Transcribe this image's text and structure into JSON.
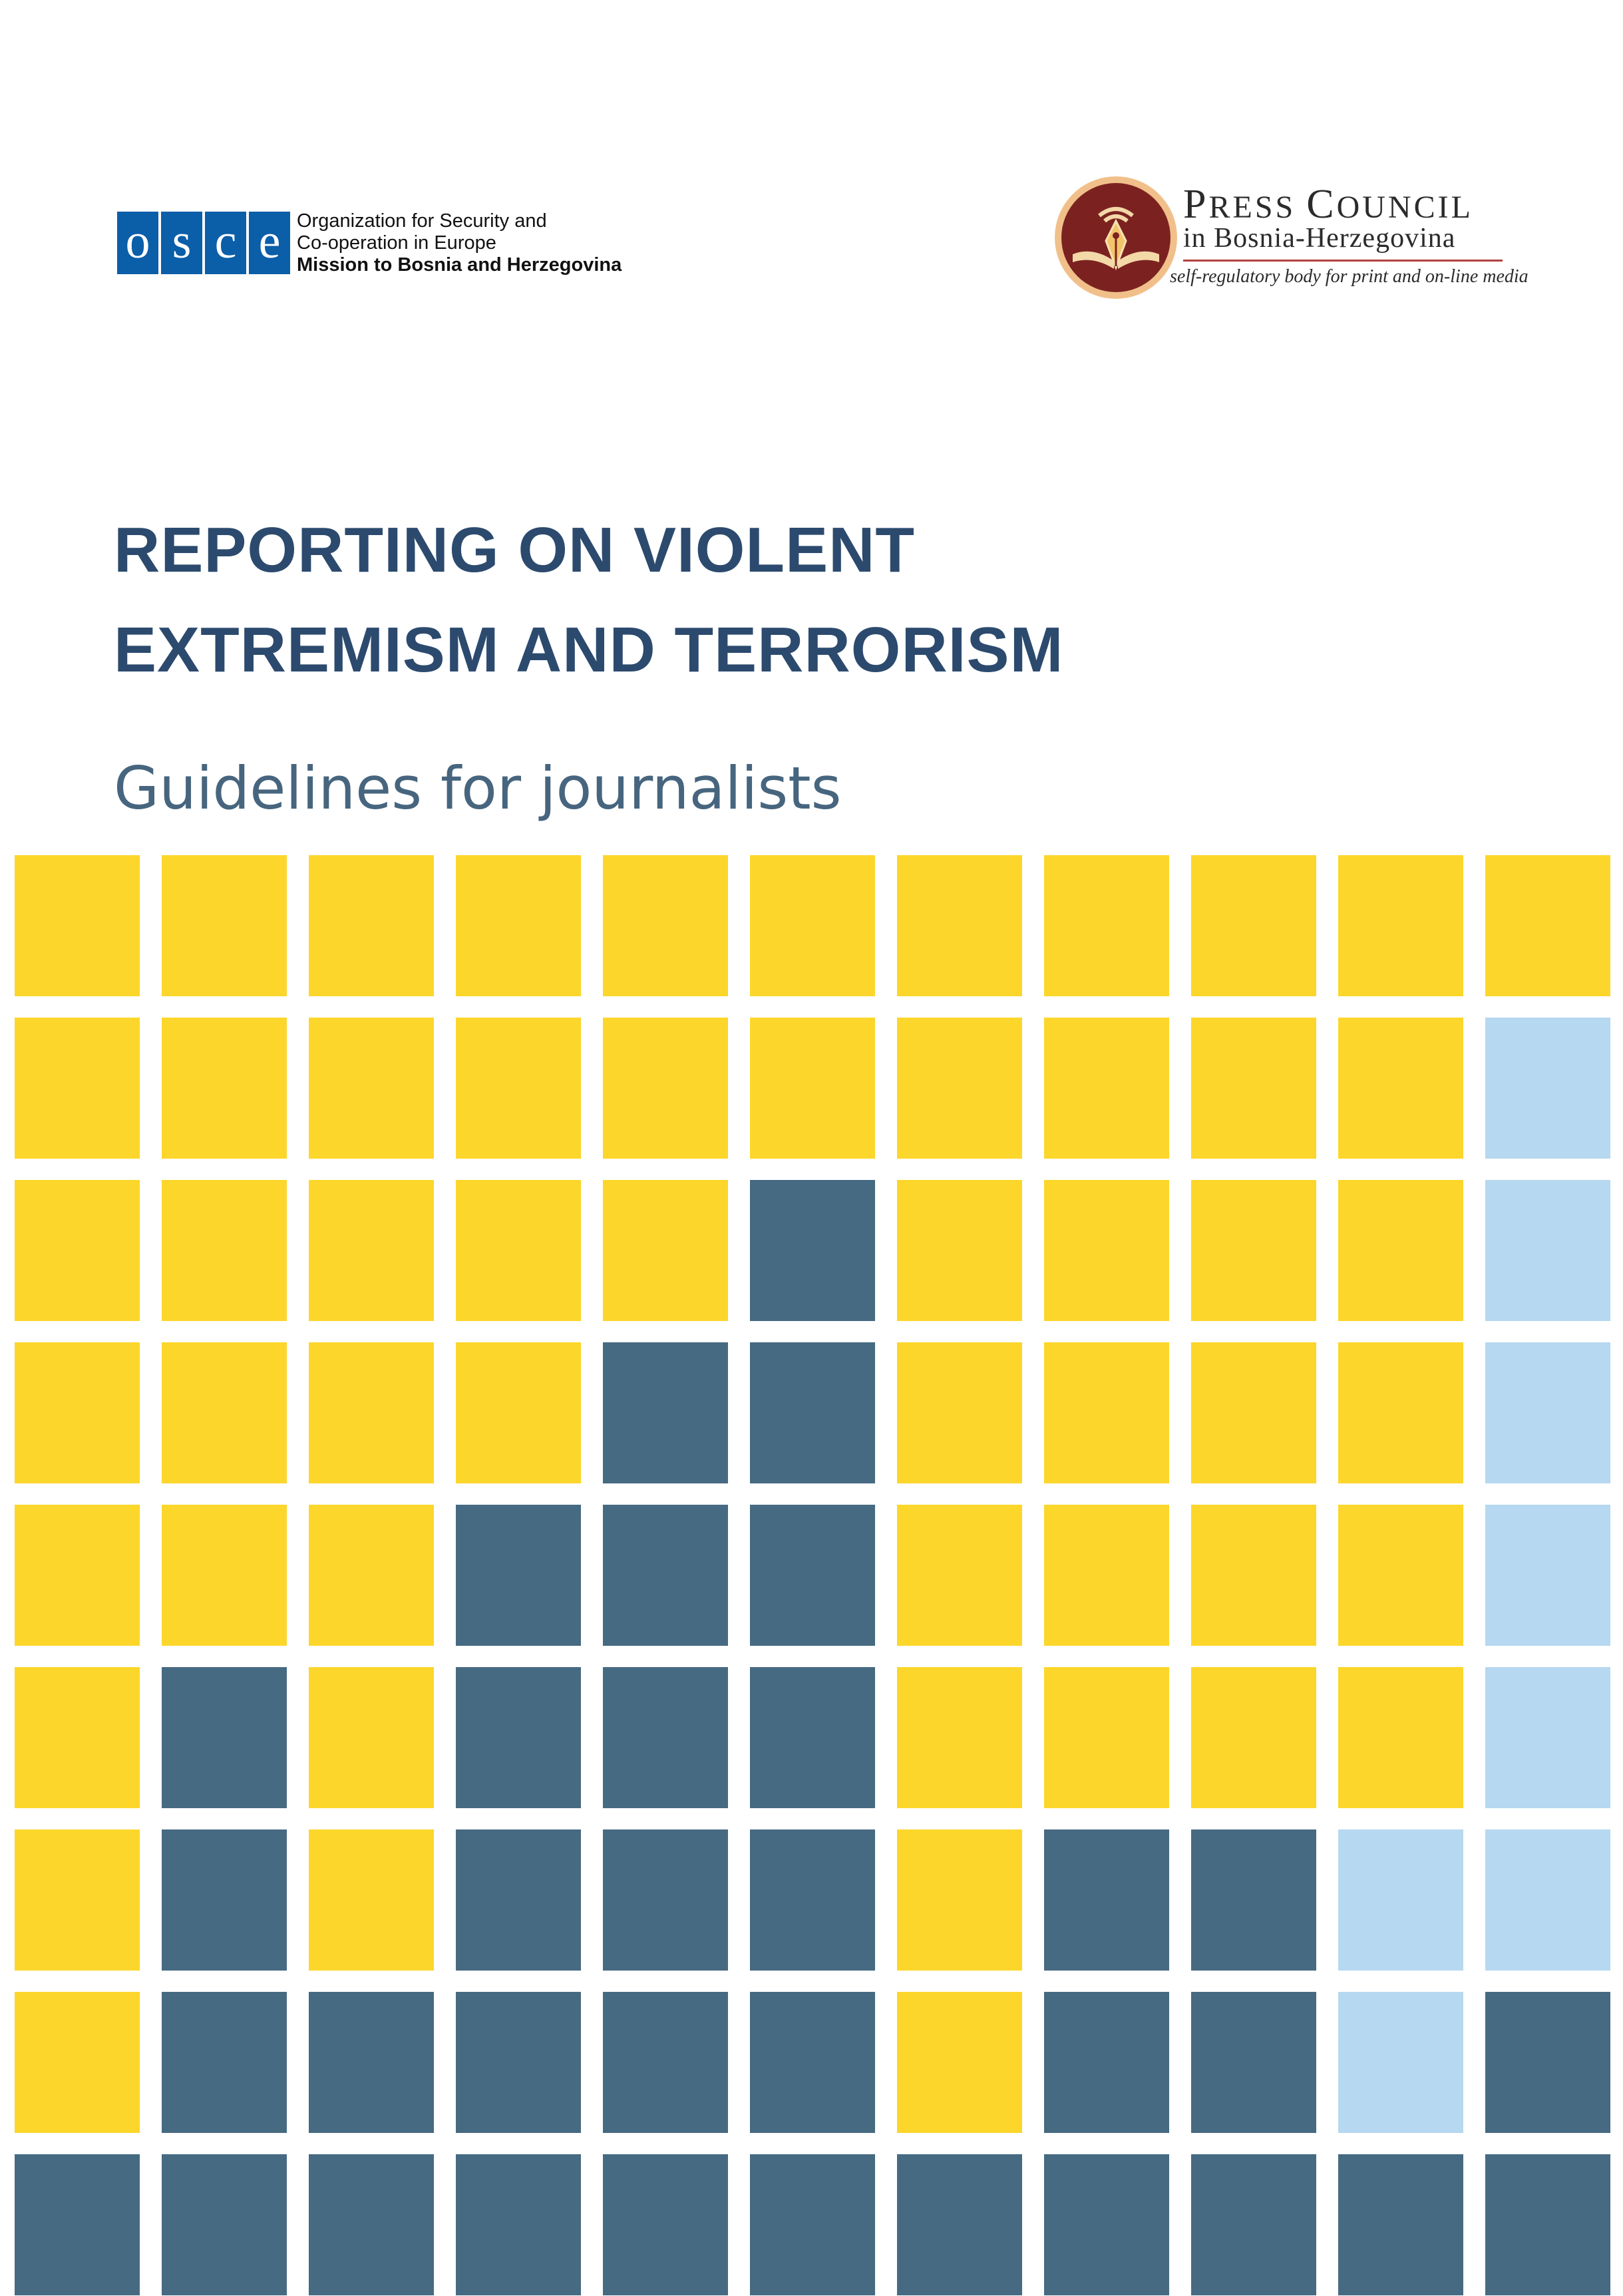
{
  "osce": {
    "letters": [
      "o",
      "s",
      "c",
      "e"
    ],
    "line1": "Organization for Security and",
    "line2": "Co-operation in Europe",
    "line3": "Mission to Bosnia and Herzegovina",
    "brand_color": "#0b5ea8"
  },
  "press_council": {
    "title_p": "P",
    "title_ress": "RESS",
    "title_c": "C",
    "title_ouncil": "OUNCIL",
    "subtitle": "in Bosnia-Herzegovina",
    "tagline": "self-regulatory body for print and on-line media",
    "emblem_icon": "pen-nib-book-icon"
  },
  "title": {
    "line1": "REPORTING ON VIOLENT",
    "line2": "EXTREMISM AND TERRORISM"
  },
  "subtitle": "Guidelines for journalists",
  "colors": {
    "Y": "#fcd62b",
    "B": "#466a82",
    "L": "#b6d8f0",
    "title": "#2c4a6e",
    "subtitle": "#47657e"
  },
  "mosaic": {
    "rows": [
      [
        "Y",
        "Y",
        "Y",
        "Y",
        "Y",
        "Y",
        "Y",
        "Y",
        "Y",
        "Y",
        "Y"
      ],
      [
        "Y",
        "Y",
        "Y",
        "Y",
        "Y",
        "Y",
        "Y",
        "Y",
        "Y",
        "Y",
        "L"
      ],
      [
        "Y",
        "Y",
        "Y",
        "Y",
        "Y",
        "B",
        "Y",
        "Y",
        "Y",
        "Y",
        "L"
      ],
      [
        "Y",
        "Y",
        "Y",
        "Y",
        "B",
        "B",
        "Y",
        "Y",
        "Y",
        "Y",
        "L"
      ],
      [
        "Y",
        "Y",
        "Y",
        "B",
        "B",
        "B",
        "Y",
        "Y",
        "Y",
        "Y",
        "L"
      ],
      [
        "Y",
        "B",
        "Y",
        "B",
        "B",
        "B",
        "Y",
        "Y",
        "Y",
        "Y",
        "L"
      ],
      [
        "Y",
        "B",
        "Y",
        "B",
        "B",
        "B",
        "Y",
        "B",
        "B",
        "L",
        "L"
      ],
      [
        "Y",
        "B",
        "B",
        "B",
        "B",
        "B",
        "Y",
        "B",
        "B",
        "L",
        "B"
      ],
      [
        "B",
        "B",
        "B",
        "B",
        "B",
        "B",
        "B",
        "B",
        "B",
        "B",
        "B"
      ]
    ]
  }
}
